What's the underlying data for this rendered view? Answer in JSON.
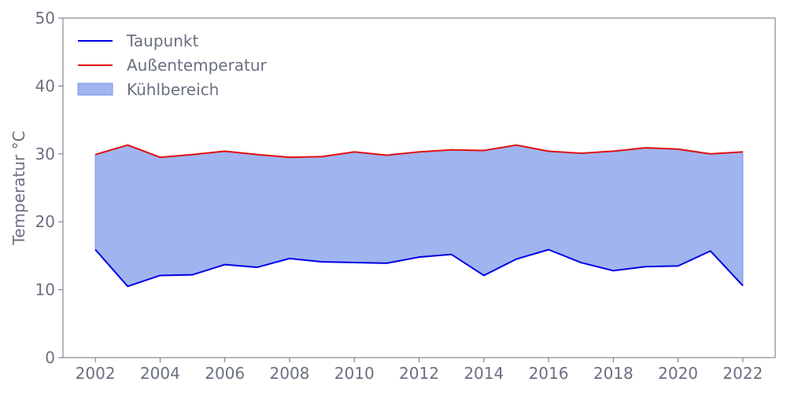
{
  "chart_data": {
    "type": "area",
    "title": "",
    "xlabel": "",
    "ylabel": "Temperatur °C",
    "xlim": [
      2001,
      2023
    ],
    "ylim": [
      0,
      50
    ],
    "x_ticks": [
      2002,
      2004,
      2006,
      2008,
      2010,
      2012,
      2014,
      2016,
      2018,
      2020,
      2022
    ],
    "y_ticks": [
      0,
      10,
      20,
      30,
      40,
      50
    ],
    "grid": false,
    "legend_position": "top-left",
    "x": [
      2002,
      2003,
      2004,
      2005,
      2006,
      2007,
      2008,
      2009,
      2010,
      2011,
      2012,
      2013,
      2014,
      2015,
      2016,
      2017,
      2018,
      2019,
      2020,
      2021,
      2022
    ],
    "series": [
      {
        "name": "Taupunkt",
        "color": "#0000e6",
        "values": [
          15.9,
          10.5,
          12.1,
          12.2,
          13.7,
          13.3,
          14.6,
          14.1,
          14.0,
          13.9,
          14.8,
          15.2,
          12.1,
          14.5,
          15.9,
          14.0,
          12.8,
          13.4,
          13.5,
          15.7,
          10.6
        ]
      },
      {
        "name": "Außentemperatur",
        "color": "#e01010",
        "values": [
          29.9,
          31.3,
          29.5,
          29.9,
          30.4,
          29.9,
          29.5,
          29.6,
          30.3,
          29.8,
          30.3,
          30.6,
          30.5,
          31.3,
          30.4,
          30.1,
          30.4,
          30.9,
          30.7,
          30.0,
          30.3
        ]
      }
    ],
    "fill": {
      "name": "Kühlbereich",
      "between": [
        "Taupunkt",
        "Außentemperatur"
      ],
      "color": "#a0b4ef",
      "edge_color": "#7b93e6"
    }
  }
}
